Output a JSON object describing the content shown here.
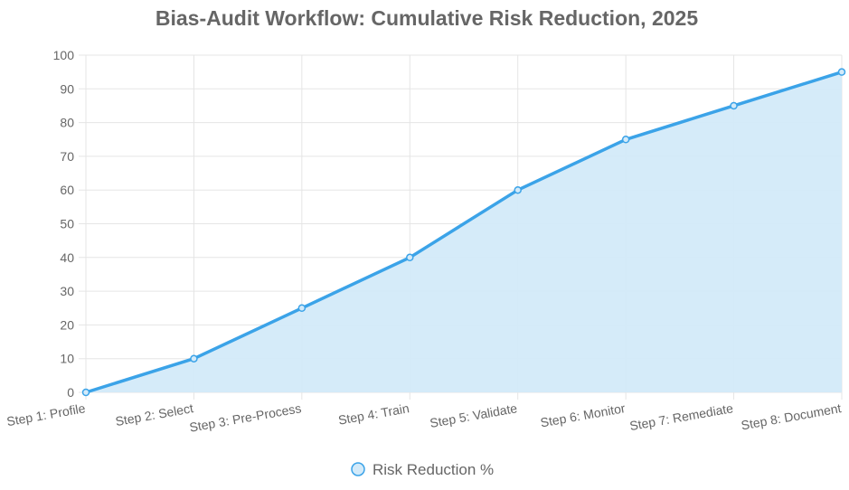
{
  "colors": {
    "line": "#3ba3e8",
    "fill": "#d3eaf9",
    "grid": "#e5e5e5",
    "text": "#666666"
  },
  "legend": {
    "marker": "circle-icon"
  },
  "chart_data": {
    "type": "area",
    "title": "Bias-Audit Workflow: Cumulative Risk Reduction, 2025",
    "xlabel": "",
    "ylabel": "",
    "categories": [
      "Step 1: Profile",
      "Step 2: Select",
      "Step 3: Pre-Process",
      "Step 4: Train",
      "Step 5: Validate",
      "Step 6: Monitor",
      "Step 7: Remediate",
      "Step 8: Document"
    ],
    "series": [
      {
        "name": "Risk Reduction %",
        "values": [
          0,
          10,
          25,
          40,
          60,
          75,
          85,
          95
        ]
      }
    ],
    "ylim": [
      0,
      100
    ],
    "yticks": [
      "0",
      "10",
      "20",
      "30",
      "40",
      "50",
      "60",
      "70",
      "80",
      "90",
      "100"
    ],
    "grid": true,
    "legend_position": "bottom"
  }
}
